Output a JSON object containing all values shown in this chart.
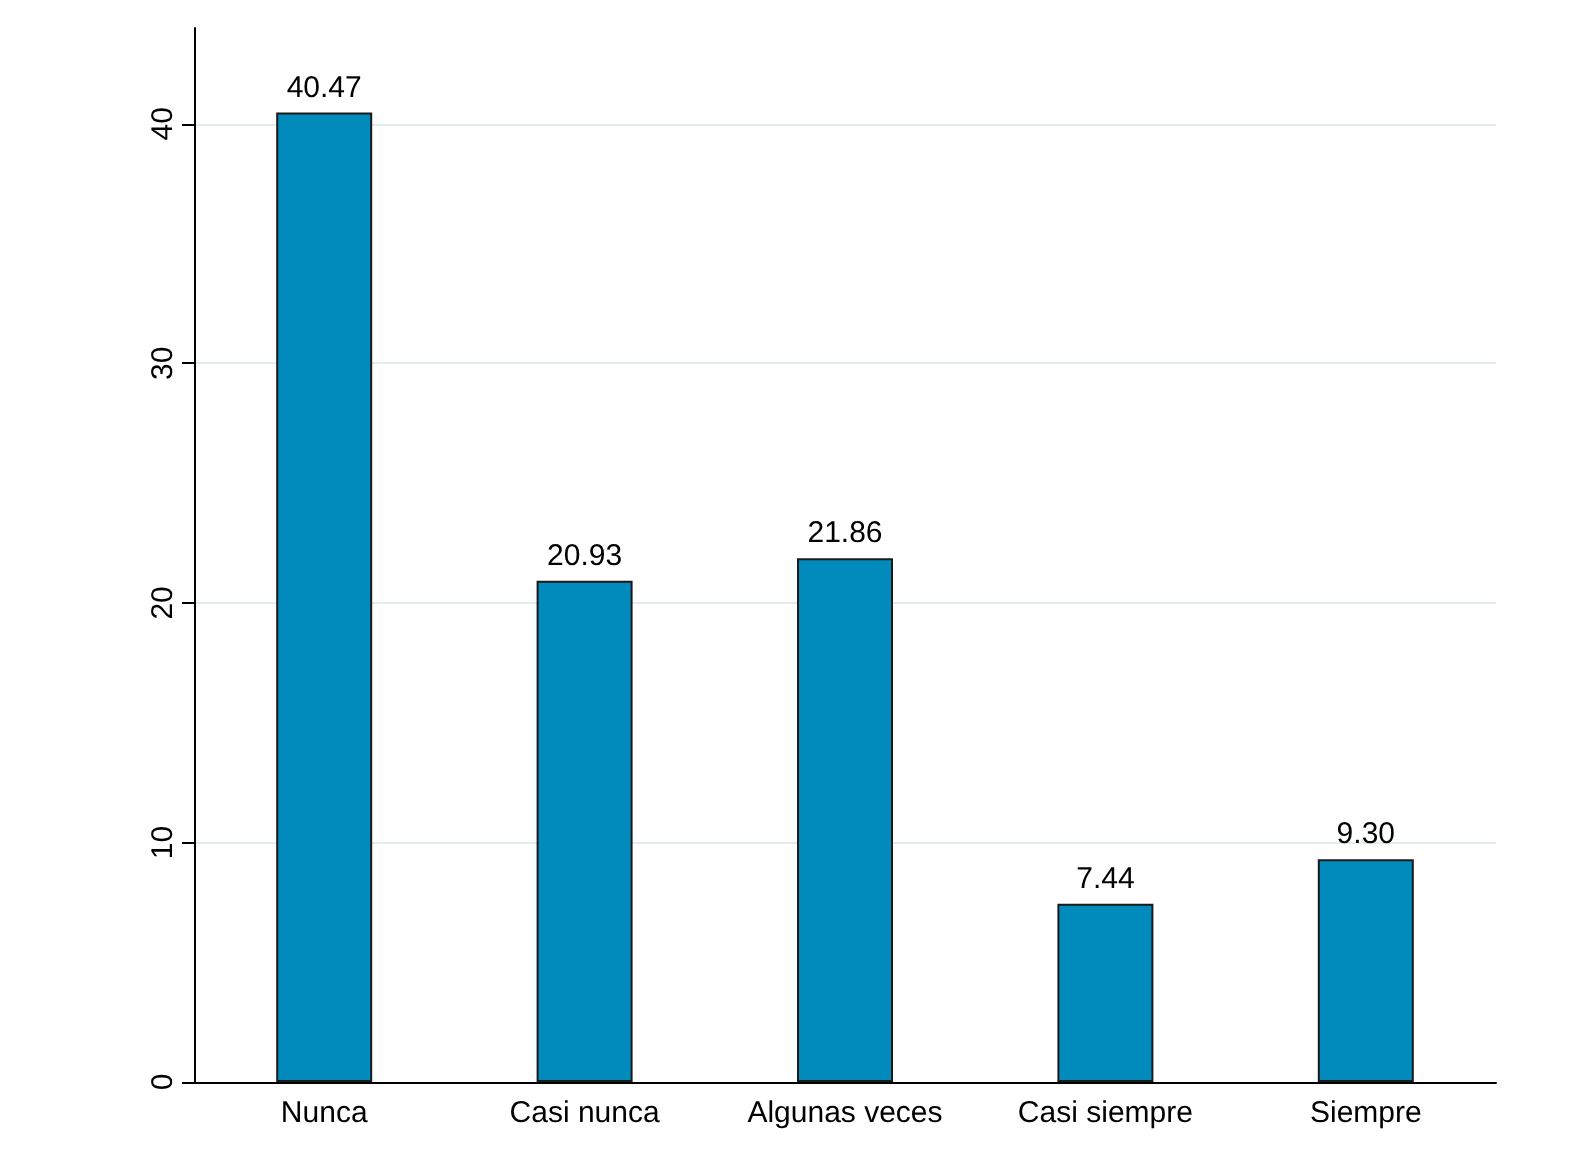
{
  "chart_data": {
    "type": "bar",
    "categories": [
      "Nunca",
      "Casi nunca",
      "Algunas veces",
      "Casi siempre",
      "Siempre"
    ],
    "values": [
      40.47,
      20.93,
      21.86,
      7.44,
      9.3
    ],
    "value_labels": [
      "40.47",
      "20.93",
      "21.86",
      "7.44",
      "9.30"
    ],
    "color": "#008bbc",
    "ylim": [
      0,
      44
    ],
    "yticks": [
      0,
      10,
      20,
      30,
      40
    ],
    "grid": "y"
  }
}
